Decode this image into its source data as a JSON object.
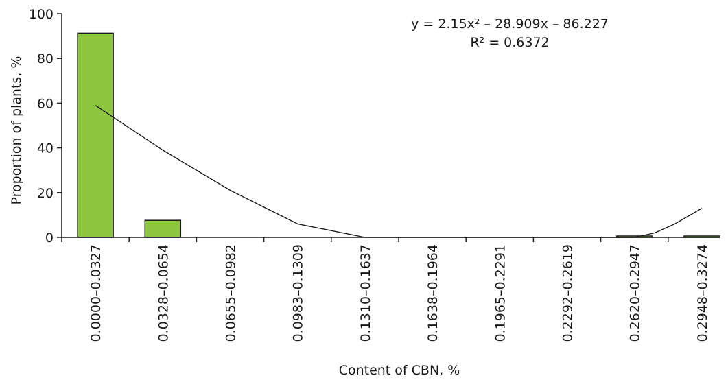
{
  "chart_data": {
    "type": "bar",
    "title": "",
    "xlabel": "Content of CBN, %",
    "ylabel": "Proportion of plants, %",
    "ylim": [
      0,
      100
    ],
    "yticks": [
      0,
      20,
      40,
      60,
      80,
      100
    ],
    "grid": false,
    "categories": [
      "0.0000–0.0327",
      "0.0328–0.0654",
      "0.0655–0.0982",
      "0.0983–0.1309",
      "0.1310–0.1637",
      "0.1638–0.1964",
      "0.1965–0.2291",
      "0.2292–0.2619",
      "0.2620–0.2947",
      "0.2948–0.3274"
    ],
    "values": [
      91.3,
      7.6,
      0,
      0,
      0,
      0,
      0,
      0,
      0.6,
      0.6
    ],
    "bar_color": "#8dc63f",
    "trendline": {
      "equation": "y = 2.15x² – 28.909x – 86.227",
      "r_squared": "R² = 0.6372",
      "points": [
        [
          1,
          59
        ],
        [
          2,
          39
        ],
        [
          3,
          21
        ],
        [
          4,
          6
        ],
        [
          5,
          0
        ],
        [
          6,
          0
        ],
        [
          7,
          0
        ],
        [
          8,
          0
        ],
        [
          9,
          0
        ],
        [
          9.3,
          2
        ],
        [
          9.6,
          6
        ],
        [
          10,
          13
        ]
      ]
    }
  }
}
